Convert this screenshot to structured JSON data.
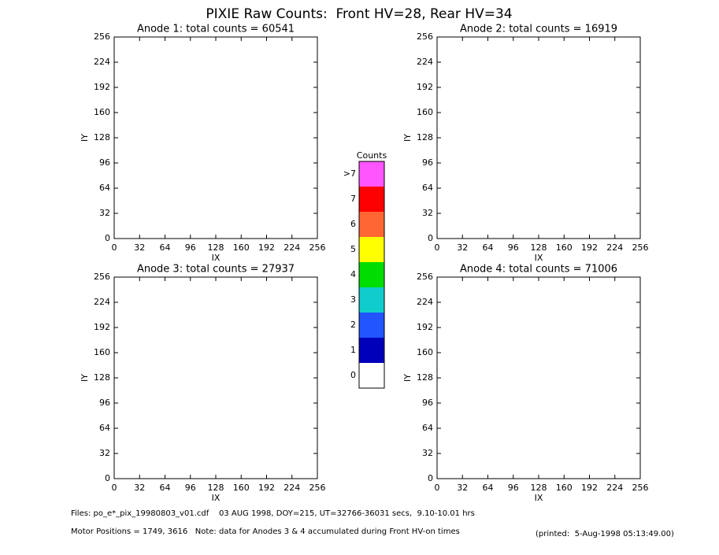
{
  "title": "PIXIE Raw Counts:  Front HV=28, Rear HV=34",
  "chart_data": [
    {
      "type": "heatmap",
      "title": "Anode 1: total counts = 60541",
      "xlabel": "IX",
      "ylabel": "IY",
      "xlim": [
        0,
        256
      ],
      "ylim": [
        0,
        256
      ],
      "xticks": [
        0,
        32,
        64,
        96,
        128,
        160,
        192,
        224,
        256
      ],
      "yticks": [
        0,
        32,
        64,
        96,
        128,
        160,
        192,
        224,
        256
      ]
    },
    {
      "type": "heatmap",
      "title": "Anode 2: total counts = 16919",
      "xlabel": "IX",
      "ylabel": "IY",
      "xlim": [
        0,
        256
      ],
      "ylim": [
        0,
        256
      ],
      "xticks": [
        0,
        32,
        64,
        96,
        128,
        160,
        192,
        224,
        256
      ],
      "yticks": [
        0,
        32,
        64,
        96,
        128,
        160,
        192,
        224,
        256
      ]
    },
    {
      "type": "heatmap",
      "title": "Anode 3: total counts = 27937",
      "xlabel": "IX",
      "ylabel": "IY",
      "xlim": [
        0,
        256
      ],
      "ylim": [
        0,
        256
      ],
      "xticks": [
        0,
        32,
        64,
        96,
        128,
        160,
        192,
        224,
        256
      ],
      "yticks": [
        0,
        32,
        64,
        96,
        128,
        160,
        192,
        224,
        256
      ]
    },
    {
      "type": "heatmap",
      "title": "Anode 4: total counts = 71006",
      "xlabel": "IX",
      "ylabel": "IY",
      "xlim": [
        0,
        256
      ],
      "ylim": [
        0,
        256
      ],
      "xticks": [
        0,
        32,
        64,
        96,
        128,
        160,
        192,
        224,
        256
      ],
      "yticks": [
        0,
        32,
        64,
        96,
        128,
        160,
        192,
        224,
        256
      ]
    }
  ],
  "colorbar": {
    "title": "Counts",
    "levels": [
      {
        "label": ">7",
        "color": "#ff55ff"
      },
      {
        "label": "7",
        "color": "#ff0000"
      },
      {
        "label": "6",
        "color": "#ff6633"
      },
      {
        "label": "5",
        "color": "#ffff00"
      },
      {
        "label": "4",
        "color": "#00dd00"
      },
      {
        "label": "3",
        "color": "#11cccc"
      },
      {
        "label": "2",
        "color": "#2255ff"
      },
      {
        "label": "1",
        "color": "#0000bb"
      },
      {
        "label": "0",
        "color": "#ffffff"
      }
    ]
  },
  "footer": {
    "files": "Files: po_e*_pix_19980803_v01.cdf    03 AUG 1998, DOY=215, UT=32766-36031 secs,  9.10-10.01 hrs",
    "motor": "Motor Positions = 1749, 3616   Note: data for Anodes 3 & 4 accumulated during Front HV-on times",
    "printed": "(printed:  5-Aug-1998 05:13:49.00)"
  }
}
